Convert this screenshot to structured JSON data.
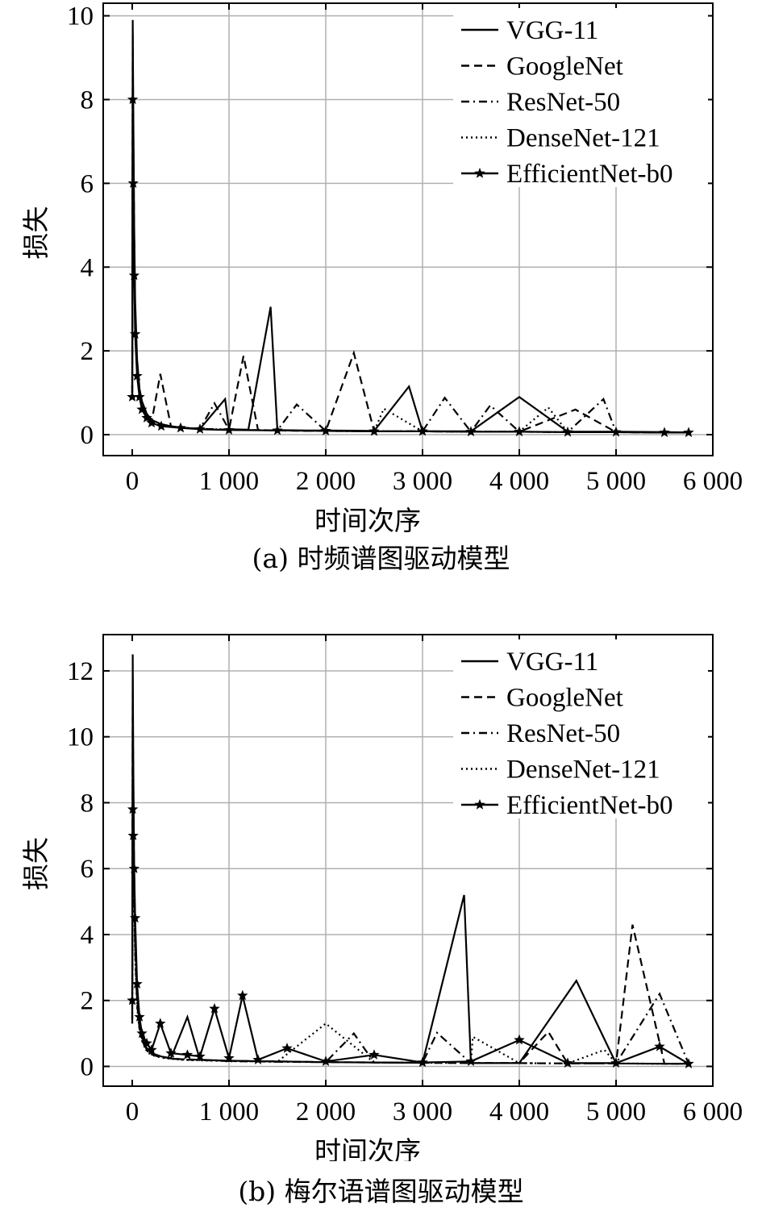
{
  "chart_data": [
    {
      "type": "line",
      "caption": "(a) 时频谱图驱动模型",
      "xlabel": "时间次序",
      "ylabel": "损失",
      "xlim": [
        -300,
        6000
      ],
      "ylim": [
        -0.5,
        10.3
      ],
      "xticks": [
        0,
        1000,
        2000,
        3000,
        4000,
        5000,
        6000
      ],
      "xtick_labels": [
        "0",
        "1 000",
        "2 000",
        "3 000",
        "4 000",
        "5 000",
        "6 000"
      ],
      "yticks": [
        0,
        2,
        4,
        6,
        8,
        10
      ],
      "ytick_labels": [
        "0",
        "2",
        "4",
        "6",
        "8",
        "10"
      ],
      "grid": true,
      "legend_position": "top-right",
      "series": [
        {
          "name": "VGG-11",
          "style": "solid",
          "marker": "",
          "x": [
            0,
            5,
            10,
            20,
            30,
            50,
            75,
            100,
            150,
            200,
            300,
            400,
            500,
            700,
            960,
            1000,
            1200,
            1430,
            1500,
            1800,
            2000,
            2500,
            2860,
            3000,
            3500,
            4000,
            4500,
            5000,
            5500,
            5750
          ],
          "y": [
            1.0,
            9.9,
            8.0,
            5.0,
            3.2,
            1.8,
            1.1,
            0.8,
            0.5,
            0.35,
            0.25,
            0.2,
            0.17,
            0.14,
            0.85,
            0.13,
            0.12,
            3.05,
            0.11,
            0.1,
            0.1,
            0.09,
            1.15,
            0.08,
            0.08,
            0.9,
            0.07,
            0.07,
            0.06,
            0.05
          ]
        },
        {
          "name": "GoogleNet",
          "style": "dashed",
          "marker": "",
          "x": [
            0,
            5,
            10,
            20,
            30,
            50,
            75,
            100,
            150,
            200,
            290,
            400,
            500,
            700,
            1000,
            1150,
            1300,
            1500,
            1800,
            2000,
            2290,
            2500,
            3000,
            3500,
            4000,
            4580,
            5000,
            5500,
            5750
          ],
          "y": [
            1.0,
            9.6,
            7.6,
            4.8,
            3.0,
            1.7,
            1.0,
            0.7,
            0.45,
            0.3,
            1.45,
            0.2,
            0.17,
            0.14,
            0.12,
            1.88,
            0.11,
            0.1,
            0.09,
            0.09,
            1.95,
            0.08,
            0.08,
            0.07,
            0.07,
            0.6,
            0.06,
            0.05,
            0.05
          ]
        },
        {
          "name": "ResNet-50",
          "style": "dashdot",
          "marker": "",
          "x": [
            0,
            5,
            10,
            20,
            30,
            50,
            75,
            100,
            150,
            200,
            300,
            500,
            700,
            850,
            1000,
            1500,
            1700,
            2000,
            2500,
            3000,
            3230,
            3500,
            3700,
            4000,
            4500,
            4870,
            5000,
            5500,
            5750
          ],
          "y": [
            1.0,
            9.0,
            7.0,
            4.5,
            2.8,
            1.6,
            1.0,
            0.7,
            0.45,
            0.3,
            0.22,
            0.17,
            0.14,
            0.75,
            0.12,
            0.1,
            0.72,
            0.09,
            0.08,
            0.08,
            0.88,
            0.07,
            0.7,
            0.07,
            0.06,
            0.85,
            0.06,
            0.05,
            0.05
          ]
        },
        {
          "name": "DenseNet-121",
          "style": "dotted",
          "marker": "",
          "x": [
            0,
            5,
            10,
            20,
            30,
            50,
            75,
            100,
            150,
            200,
            300,
            500,
            700,
            1000,
            1500,
            2000,
            2500,
            2600,
            3000,
            3500,
            4000,
            4300,
            4500,
            5000,
            5500,
            5750
          ],
          "y": [
            1.0,
            8.5,
            6.5,
            4.2,
            2.6,
            1.5,
            0.95,
            0.65,
            0.42,
            0.3,
            0.22,
            0.17,
            0.14,
            0.12,
            0.1,
            0.09,
            0.08,
            0.62,
            0.08,
            0.07,
            0.07,
            0.65,
            0.06,
            0.06,
            0.05,
            0.05
          ]
        },
        {
          "name": "EfficientNet-b0",
          "style": "solid",
          "marker": "star",
          "x": [
            0,
            5,
            10,
            20,
            30,
            50,
            75,
            100,
            150,
            200,
            300,
            500,
            700,
            1000,
            1500,
            2000,
            2500,
            3000,
            3500,
            4000,
            4500,
            5000,
            5500,
            5750
          ],
          "y": [
            0.9,
            8.0,
            6.0,
            3.8,
            2.4,
            1.4,
            0.9,
            0.6,
            0.4,
            0.28,
            0.2,
            0.16,
            0.13,
            0.11,
            0.1,
            0.09,
            0.08,
            0.08,
            0.07,
            0.07,
            0.06,
            0.06,
            0.05,
            0.05
          ]
        }
      ]
    },
    {
      "type": "line",
      "caption": "(b) 梅尔语谱图驱动模型",
      "xlabel": "时间次序",
      "ylabel": "损失",
      "xlim": [
        -300,
        6000
      ],
      "ylim": [
        -0.6,
        13.1
      ],
      "xticks": [
        0,
        1000,
        2000,
        3000,
        4000,
        5000,
        6000
      ],
      "xtick_labels": [
        "0",
        "1 000",
        "2 000",
        "3 000",
        "4 000",
        "5 000",
        "6 000"
      ],
      "yticks": [
        0,
        2,
        4,
        6,
        8,
        10,
        12
      ],
      "ytick_labels": [
        "0",
        "2",
        "4",
        "6",
        "8",
        "10",
        "12"
      ],
      "grid": true,
      "legend_position": "top-right",
      "series": [
        {
          "name": "VGG-11",
          "style": "solid",
          "marker": "",
          "x": [
            0,
            5,
            10,
            20,
            30,
            50,
            75,
            100,
            150,
            200,
            300,
            400,
            570,
            700,
            1000,
            1500,
            2000,
            2500,
            3000,
            3430,
            3500,
            4000,
            4590,
            5000,
            5500,
            5750
          ],
          "y": [
            1.5,
            12.5,
            9.5,
            6.0,
            4.0,
            2.2,
            1.3,
            0.9,
            0.55,
            0.4,
            0.3,
            0.25,
            1.5,
            0.2,
            0.17,
            0.15,
            0.13,
            0.12,
            0.11,
            5.2,
            0.1,
            0.1,
            2.6,
            0.09,
            0.08,
            0.08
          ]
        },
        {
          "name": "GoogleNet",
          "style": "dashed",
          "marker": "",
          "x": [
            0,
            5,
            10,
            20,
            30,
            50,
            75,
            100,
            150,
            200,
            300,
            500,
            700,
            1000,
            1500,
            2000,
            2500,
            3000,
            3500,
            4000,
            4300,
            4500,
            5000,
            5170,
            5500,
            5750
          ],
          "y": [
            1.4,
            11.8,
            9.0,
            5.6,
            3.7,
            2.0,
            1.2,
            0.85,
            0.5,
            0.38,
            0.28,
            0.22,
            0.2,
            0.17,
            0.15,
            0.13,
            0.12,
            0.11,
            0.1,
            0.1,
            1.05,
            0.09,
            0.09,
            4.3,
            0.08,
            0.08
          ]
        },
        {
          "name": "ResNet-50",
          "style": "dashdot",
          "marker": "",
          "x": [
            0,
            5,
            10,
            20,
            30,
            50,
            75,
            100,
            150,
            200,
            300,
            500,
            700,
            1000,
            1500,
            2000,
            2290,
            2500,
            3000,
            3150,
            3500,
            4000,
            4500,
            5000,
            5450,
            5750
          ],
          "y": [
            1.3,
            11.0,
            8.5,
            5.3,
            3.5,
            1.9,
            1.15,
            0.8,
            0.48,
            0.36,
            0.27,
            0.21,
            0.19,
            0.16,
            0.14,
            0.13,
            1.0,
            0.12,
            0.11,
            1.02,
            0.1,
            0.1,
            0.09,
            0.09,
            2.2,
            0.08
          ]
        },
        {
          "name": "DenseNet-121",
          "style": "dotted",
          "marker": "",
          "x": [
            0,
            5,
            10,
            20,
            30,
            50,
            75,
            100,
            150,
            200,
            300,
            500,
            700,
            1000,
            1500,
            2000,
            2500,
            3000,
            3500,
            3520,
            4000,
            4500,
            4880,
            5000,
            5500,
            5750
          ],
          "y": [
            1.3,
            10.5,
            8.0,
            5.0,
            3.3,
            1.8,
            1.1,
            0.78,
            0.46,
            0.35,
            0.26,
            0.2,
            0.18,
            0.16,
            0.14,
            1.3,
            0.12,
            0.11,
            0.1,
            0.9,
            0.1,
            0.09,
            0.5,
            0.09,
            0.08,
            0.08
          ]
        },
        {
          "name": "EfficientNet-b0",
          "style": "solid",
          "marker": "star",
          "x": [
            0,
            5,
            10,
            20,
            30,
            50,
            75,
            100,
            150,
            200,
            290,
            400,
            570,
            700,
            850,
            1000,
            1140,
            1300,
            1600,
            2000,
            2500,
            3000,
            3500,
            4000,
            4500,
            5000,
            5450,
            5750
          ],
          "y": [
            2.0,
            7.8,
            7.0,
            6.0,
            4.5,
            2.5,
            1.5,
            1.0,
            0.7,
            0.5,
            1.3,
            0.4,
            0.35,
            0.3,
            1.75,
            0.25,
            2.15,
            0.2,
            0.55,
            0.15,
            0.35,
            0.12,
            0.15,
            0.8,
            0.1,
            0.1,
            0.6,
            0.08
          ]
        }
      ]
    }
  ]
}
